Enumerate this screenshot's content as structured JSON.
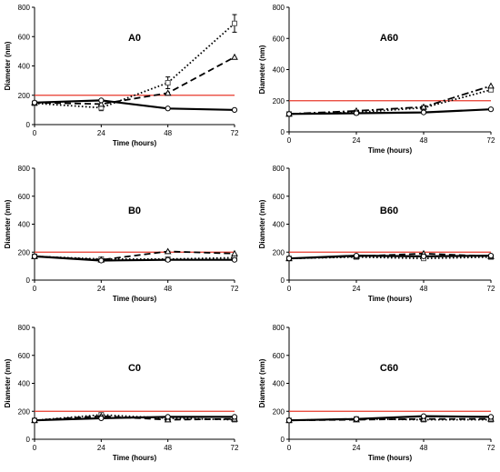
{
  "chart_data": [
    {
      "type": "line",
      "title": "A0",
      "xlabel": "Time (hours)",
      "ylabel": "Diameter (nm)",
      "x": [
        0,
        24,
        48,
        72
      ],
      "xticks": [
        "0",
        "24",
        "48",
        "72"
      ],
      "yticks": [
        "0",
        "200",
        "400",
        "600",
        "800"
      ],
      "xlim": [
        0,
        72
      ],
      "ylim": [
        0,
        800
      ],
      "reference_line": {
        "y": 200,
        "color": "#e8392c"
      },
      "series": [
        {
          "style": "solid",
          "marker": "circle",
          "values": [
            150,
            165,
            110,
            100
          ]
        },
        {
          "style": "dashed",
          "marker": "triangle",
          "values": [
            150,
            140,
            215,
            460
          ]
        },
        {
          "style": "dotted",
          "marker": "square",
          "values": [
            145,
            115,
            285,
            690
          ],
          "error": [
            0,
            20,
            40,
            60
          ]
        }
      ]
    },
    {
      "type": "line",
      "title": "A60",
      "xlabel": "Time (hours)",
      "ylabel": "Diameter (nm)",
      "x": [
        0,
        24,
        48,
        72
      ],
      "xticks": [
        "0",
        "24",
        "48",
        "72"
      ],
      "yticks": [
        "0",
        "200",
        "400",
        "600",
        "800"
      ],
      "xlim": [
        0,
        72
      ],
      "ylim": [
        0,
        800
      ],
      "reference_line": {
        "y": 200,
        "color": "#e8392c"
      },
      "series": [
        {
          "style": "solid",
          "marker": "circle",
          "values": [
            115,
            120,
            125,
            145
          ]
        },
        {
          "style": "dashdot",
          "marker": "triangle",
          "values": [
            115,
            135,
            160,
            295
          ]
        },
        {
          "style": "dotted",
          "marker": "square",
          "values": [
            115,
            125,
            155,
            270
          ]
        }
      ]
    },
    {
      "type": "line",
      "title": "B0",
      "xlabel": "Time (hours)",
      "ylabel": "Diameter (nm)",
      "x": [
        0,
        24,
        48,
        72
      ],
      "xticks": [
        "0",
        "24",
        "48",
        "72"
      ],
      "yticks": [
        "0",
        "200",
        "400",
        "600",
        "800"
      ],
      "xlim": [
        0,
        72
      ],
      "ylim": [
        0,
        800
      ],
      "reference_line": {
        "y": 200,
        "color": "#e8392c"
      },
      "series": [
        {
          "style": "solid",
          "marker": "circle",
          "values": [
            170,
            140,
            145,
            145
          ]
        },
        {
          "style": "dashed",
          "marker": "triangle",
          "values": [
            170,
            145,
            205,
            190
          ]
        },
        {
          "style": "dotted",
          "marker": "square",
          "values": [
            170,
            150,
            150,
            160
          ]
        }
      ]
    },
    {
      "type": "line",
      "title": "B60",
      "xlabel": "Time (hours)",
      "ylabel": "Diameter (nm)",
      "x": [
        0,
        24,
        48,
        72
      ],
      "xticks": [
        "0",
        "24",
        "48",
        "72"
      ],
      "yticks": [
        "0",
        "200",
        "400",
        "600",
        "800"
      ],
      "xlim": [
        0,
        72
      ],
      "ylim": [
        0,
        800
      ],
      "reference_line": {
        "y": 200,
        "color": "#e8392c"
      },
      "series": [
        {
          "style": "solid",
          "marker": "circle",
          "values": [
            155,
            175,
            170,
            175
          ]
        },
        {
          "style": "dashed",
          "marker": "triangle",
          "values": [
            155,
            170,
            190,
            170
          ]
        },
        {
          "style": "dotted",
          "marker": "square",
          "values": [
            155,
            165,
            155,
            165
          ]
        }
      ]
    },
    {
      "type": "line",
      "title": "C0",
      "xlabel": "Time (hours)",
      "ylabel": "Diameter (nm)",
      "x": [
        0,
        24,
        48,
        72
      ],
      "xticks": [
        "0",
        "24",
        "48",
        "72"
      ],
      "yticks": [
        "0",
        "200",
        "400",
        "600",
        "800"
      ],
      "xlim": [
        0,
        72
      ],
      "ylim": [
        0,
        800
      ],
      "reference_line": {
        "y": 200,
        "color": "#e8392c"
      },
      "series": [
        {
          "style": "solid",
          "marker": "circle",
          "values": [
            135,
            150,
            160,
            160
          ]
        },
        {
          "style": "dashed",
          "marker": "triangle",
          "values": [
            135,
            165,
            140,
            145
          ]
        },
        {
          "style": "dotted",
          "marker": "square",
          "values": [
            135,
            175,
            150,
            140
          ]
        }
      ]
    },
    {
      "type": "line",
      "title": "C60",
      "xlabel": "Time (hours)",
      "ylabel": "Diameter (nm)",
      "x": [
        0,
        24,
        48,
        72
      ],
      "xticks": [
        "0",
        "24",
        "48",
        "72"
      ],
      "yticks": [
        "0",
        "200",
        "400",
        "600",
        "800"
      ],
      "xlim": [
        0,
        72
      ],
      "ylim": [
        0,
        800
      ],
      "reference_line": {
        "y": 200,
        "color": "#e8392c"
      },
      "series": [
        {
          "style": "solid",
          "marker": "circle",
          "values": [
            135,
            145,
            165,
            160
          ]
        },
        {
          "style": "dashed",
          "marker": "triangle",
          "values": [
            135,
            140,
            145,
            145
          ]
        },
        {
          "style": "dotted",
          "marker": "square",
          "values": [
            135,
            145,
            140,
            140
          ]
        }
      ]
    }
  ]
}
